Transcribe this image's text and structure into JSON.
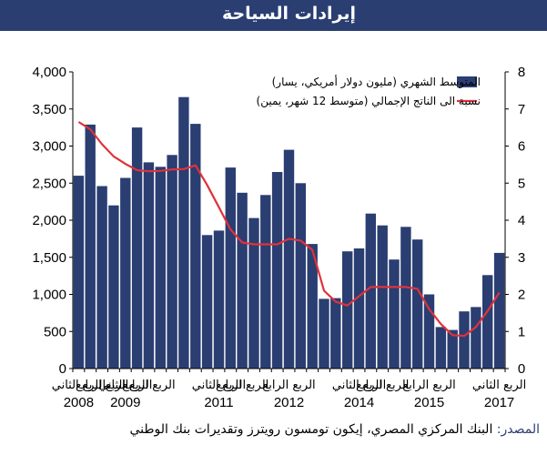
{
  "page": {
    "title": "إيرادات السياحة",
    "source_label": "المصدر:",
    "source_text": " البنك المركزي المصري، إيكون تومسون رويترز وتقديرات بنك الوطني"
  },
  "chart_data": {
    "type": "bar",
    "title": "إيرادات السياحة",
    "categories": [
      "2008 Q2",
      "2008 Q3",
      "2008 Q4",
      "2009 Q1",
      "2009 Q2",
      "2009 Q3",
      "2009 Q4",
      "2010 Q1",
      "2010 Q2",
      "2010 Q3",
      "2010 Q4",
      "2011 Q1",
      "2011 Q2",
      "2011 Q3",
      "2011 Q4",
      "2012 Q1",
      "2012 Q2",
      "2012 Q3",
      "2012 Q4",
      "2013 Q1",
      "2013 Q2",
      "2013 Q3",
      "2013 Q4",
      "2014 Q1",
      "2014 Q2",
      "2014 Q3",
      "2014 Q4",
      "2015 Q1",
      "2015 Q2",
      "2015 Q3",
      "2015 Q4",
      "2016 Q1",
      "2016 Q2",
      "2016 Q3",
      "2016 Q4",
      "2017 Q1",
      "2017 Q2"
    ],
    "series": [
      {
        "name": "المتوسط الشهري (مليون دولار أمريكي، يسار)",
        "type": "bar",
        "axis": "left",
        "color": "#2a3e72",
        "values": [
          2600,
          3290,
          2460,
          2200,
          2570,
          3250,
          2780,
          2720,
          2880,
          3660,
          3300,
          1800,
          1860,
          2710,
          2370,
          2030,
          2340,
          2650,
          2950,
          2500,
          1680,
          940,
          950,
          1580,
          1620,
          2090,
          1930,
          1470,
          1910,
          1740,
          1000,
          560,
          520,
          770,
          830,
          1260,
          1560
        ]
      },
      {
        "name": "نسبة الى الناتج الإجمالي (متوسط 12 شهر، يمين)",
        "type": "line",
        "axis": "right",
        "color": "#e0323a",
        "values": [
          6.65,
          6.45,
          6.05,
          5.72,
          5.52,
          5.35,
          5.32,
          5.33,
          5.37,
          5.38,
          5.48,
          4.95,
          4.35,
          3.75,
          3.4,
          3.35,
          3.35,
          3.35,
          3.5,
          3.45,
          3.2,
          2.1,
          1.8,
          1.7,
          1.95,
          2.2,
          2.2,
          2.2,
          2.2,
          2.15,
          1.6,
          1.2,
          0.9,
          0.88,
          1.12,
          1.55,
          2.05
        ]
      }
    ],
    "ylim_left": [
      0,
      4000
    ],
    "ylim_right": [
      0,
      8
    ],
    "yticks_left": [
      "0",
      "500",
      "1,000",
      "1,500",
      "2,000",
      "2,500",
      "3,000",
      "3,500",
      "4,000"
    ],
    "yticks_right": [
      "0",
      "1",
      "2",
      "3",
      "4",
      "5",
      "6",
      "7",
      "8"
    ],
    "xtick_labels": [
      {
        "index": 0,
        "quarter": "الربع الثاني",
        "year": "2008"
      },
      {
        "index": 2,
        "quarter": "الربع الرابع",
        "year": ""
      },
      {
        "index": 4,
        "quarter": "الربع الثاني",
        "year": "2009"
      },
      {
        "index": 6,
        "quarter": "الربع الرابع",
        "year": ""
      },
      {
        "index": 12,
        "quarter": "الربع الثاني",
        "year": "2011"
      },
      {
        "index": 14,
        "quarter": "الربع الرابع",
        "year": ""
      },
      {
        "index": 18,
        "quarter": "الربع الرابع",
        "year": "2012"
      },
      {
        "index": 24,
        "quarter": "الربع الثاني",
        "year": "2014"
      },
      {
        "index": 26,
        "quarter": "الربع الرابع",
        "year": ""
      },
      {
        "index": 30,
        "quarter": "الربع الرابع",
        "year": "2015"
      },
      {
        "index": 36,
        "quarter": "الربع الثاني",
        "year": "2017"
      }
    ],
    "legend_position": "top-right",
    "grid": false
  }
}
